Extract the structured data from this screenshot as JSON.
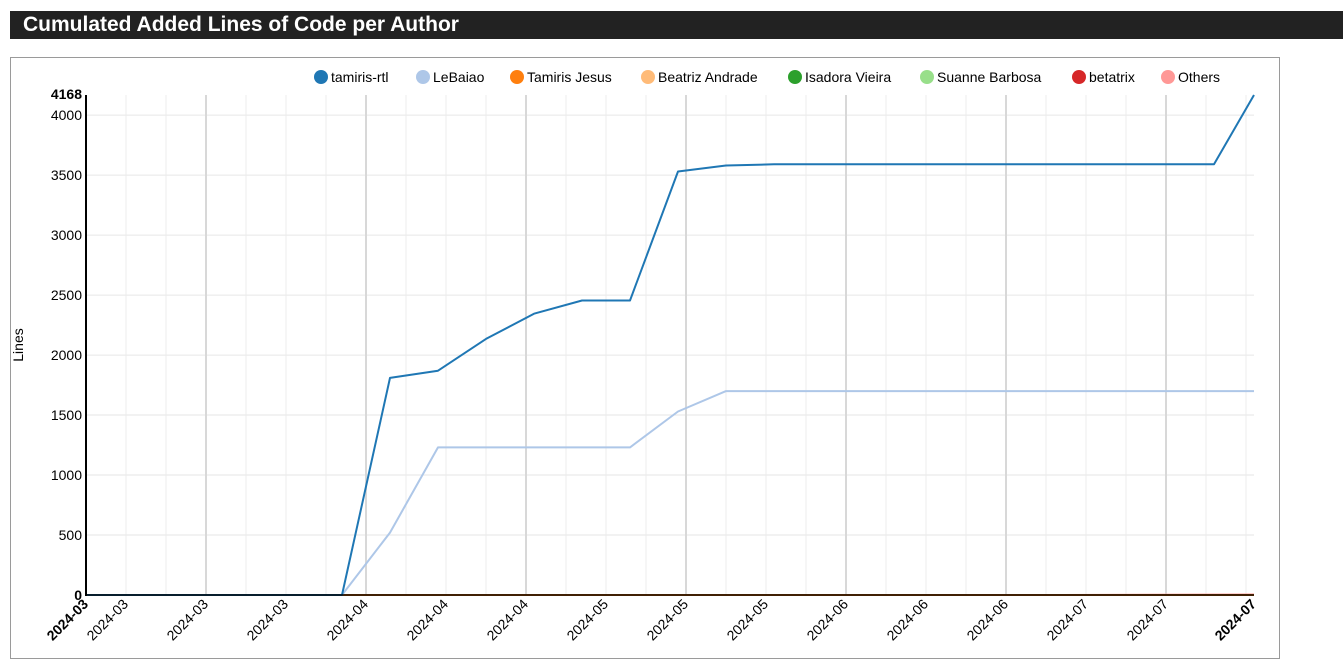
{
  "title": "Cumulated Added Lines of Code per Author",
  "chart_data": {
    "type": "line",
    "title": "Cumulated Added Lines of Code per Author",
    "xlabel": "",
    "ylabel": "Lines",
    "ylim": [
      0,
      4168
    ],
    "y_max_label": "4168",
    "y_ticks": [
      0,
      500,
      1000,
      1500,
      2000,
      2500,
      3000,
      3500,
      4000
    ],
    "y_tick_labels": [
      "0",
      "500",
      "1000",
      "1500",
      "2000",
      "2500",
      "3000",
      "3500",
      "4000"
    ],
    "x_start": "2024-02-29",
    "x_end": "2024-07-24",
    "x_ticks": [
      "2024-03-05",
      "2024-03-15",
      "2024-03-25",
      "2024-04-04",
      "2024-04-14",
      "2024-04-24",
      "2024-05-04",
      "2024-05-14",
      "2024-05-24",
      "2024-06-03",
      "2024-06-13",
      "2024-06-23",
      "2024-07-03",
      "2024-07-13"
    ],
    "x_tick_labels": [
      "2024-03",
      "2024-03",
      "2024-03",
      "2024-04",
      "2024-04",
      "2024-04",
      "2024-05",
      "2024-05",
      "2024-05",
      "2024-06",
      "2024-06",
      "2024-06",
      "2024-07",
      "2024-07"
    ],
    "x_start_label": "2024-03",
    "x_end_label": "2024-07",
    "grid": true,
    "legend_position": "top",
    "series": [
      {
        "name": "tamiris-rtl",
        "color": "#1f77b4",
        "points": [
          [
            "2024-02-29",
            0
          ],
          [
            "2024-04-01",
            0
          ],
          [
            "2024-04-07",
            1810
          ],
          [
            "2024-04-13",
            1870
          ],
          [
            "2024-04-19",
            2135
          ],
          [
            "2024-04-25",
            2345
          ],
          [
            "2024-05-01",
            2455
          ],
          [
            "2024-05-07",
            2455
          ],
          [
            "2024-05-13",
            3530
          ],
          [
            "2024-05-19",
            3580
          ],
          [
            "2024-05-25",
            3590
          ],
          [
            "2024-06-01",
            3590
          ],
          [
            "2024-06-07",
            3590
          ],
          [
            "2024-06-13",
            3590
          ],
          [
            "2024-06-19",
            3590
          ],
          [
            "2024-06-25",
            3590
          ],
          [
            "2024-07-01",
            3590
          ],
          [
            "2024-07-07",
            3590
          ],
          [
            "2024-07-13",
            3590
          ],
          [
            "2024-07-19",
            3590
          ],
          [
            "2024-07-24",
            4168
          ]
        ]
      },
      {
        "name": "LeBaiao",
        "color": "#aec7e8",
        "points": [
          [
            "2024-02-29",
            0
          ],
          [
            "2024-04-01",
            0
          ],
          [
            "2024-04-07",
            520
          ],
          [
            "2024-04-13",
            1230
          ],
          [
            "2024-04-19",
            1230
          ],
          [
            "2024-04-25",
            1230
          ],
          [
            "2024-05-01",
            1230
          ],
          [
            "2024-05-07",
            1230
          ],
          [
            "2024-05-13",
            1530
          ],
          [
            "2024-05-19",
            1700
          ],
          [
            "2024-05-25",
            1700
          ],
          [
            "2024-06-01",
            1700
          ],
          [
            "2024-06-07",
            1700
          ],
          [
            "2024-06-13",
            1700
          ],
          [
            "2024-06-19",
            1700
          ],
          [
            "2024-06-25",
            1700
          ],
          [
            "2024-07-01",
            1700
          ],
          [
            "2024-07-07",
            1700
          ],
          [
            "2024-07-13",
            1700
          ],
          [
            "2024-07-19",
            1700
          ],
          [
            "2024-07-24",
            1700
          ]
        ]
      },
      {
        "name": "Tamiris Jesus",
        "color": "#ff7f0e",
        "points": [
          [
            "2024-02-29",
            0
          ],
          [
            "2024-07-24",
            0
          ]
        ]
      },
      {
        "name": "Beatriz Andrade",
        "color": "#ffbb78",
        "points": [
          [
            "2024-02-29",
            0
          ],
          [
            "2024-07-24",
            0
          ]
        ]
      },
      {
        "name": "Isadora Vieira",
        "color": "#2ca02c",
        "points": [
          [
            "2024-02-29",
            0
          ],
          [
            "2024-07-24",
            0
          ]
        ]
      },
      {
        "name": "Suanne Barbosa",
        "color": "#98df8a",
        "points": [
          [
            "2024-02-29",
            0
          ],
          [
            "2024-07-24",
            0
          ]
        ]
      },
      {
        "name": "betatrix",
        "color": "#d62728",
        "points": [
          [
            "2024-02-29",
            0
          ],
          [
            "2024-07-24",
            0
          ]
        ]
      },
      {
        "name": "Others",
        "color": "#ff9896",
        "points": [
          [
            "2024-02-29",
            0
          ],
          [
            "2024-06-30",
            0
          ],
          [
            "2024-07-24",
            4
          ]
        ]
      }
    ]
  }
}
